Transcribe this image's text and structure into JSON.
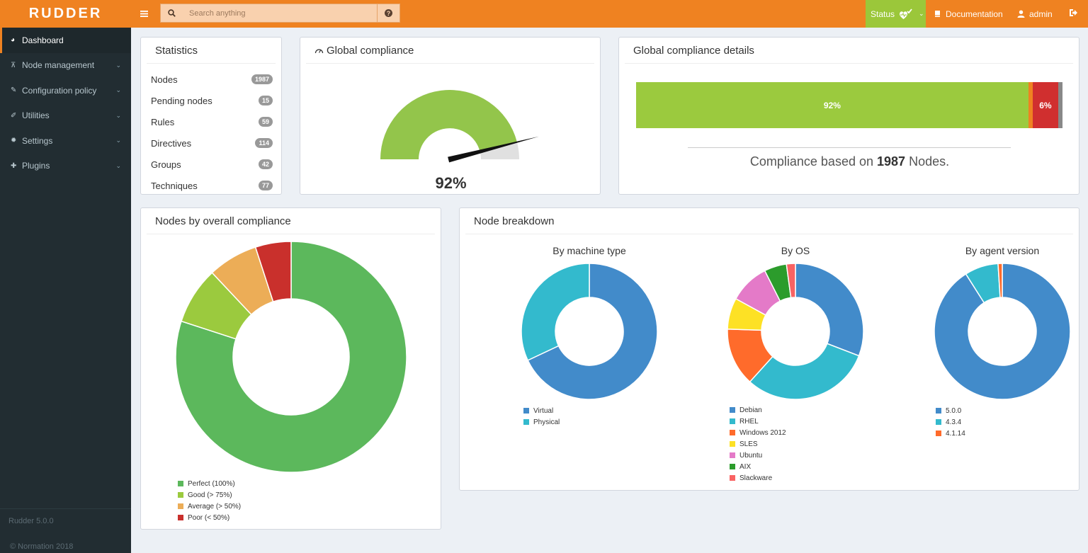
{
  "header": {
    "logo": "RUDDER",
    "search_placeholder": "Search anything",
    "status_label": "Status",
    "documentation_label": "Documentation",
    "user_label": "admin",
    "colors": {
      "brand": "#ef8221",
      "status": "#9bc73a"
    }
  },
  "sidebar": {
    "items": [
      {
        "label": "Dashboard",
        "icon": "dashboard-icon"
      },
      {
        "label": "Node management",
        "icon": "sitemap-icon"
      },
      {
        "label": "Configuration policy",
        "icon": "pencil-icon"
      },
      {
        "label": "Utilities",
        "icon": "wrench-icon"
      },
      {
        "label": "Settings",
        "icon": "gear-icon"
      },
      {
        "label": "Plugins",
        "icon": "puzzle-icon"
      }
    ],
    "version": "Rudder 5.0.0",
    "copyright": "© Normation 2018"
  },
  "statistics": {
    "title": "Statistics",
    "rows": [
      {
        "label": "Nodes",
        "count": "1987"
      },
      {
        "label": "Pending nodes",
        "count": "15"
      },
      {
        "label": "Rules",
        "count": "59"
      },
      {
        "label": "Directives",
        "count": "114"
      },
      {
        "label": "Groups",
        "count": "42"
      },
      {
        "label": "Techniques",
        "count": "77"
      }
    ]
  },
  "global_compliance": {
    "title": "Global compliance",
    "value_label": "92%",
    "value": 92
  },
  "compliance_details": {
    "title": "Global compliance details",
    "segments": [
      {
        "label": "92%",
        "value": 92,
        "color": "#9bca3e"
      },
      {
        "label": "",
        "value": 1,
        "color": "#ef8221"
      },
      {
        "label": "6%",
        "value": 6,
        "color": "#d02f2f"
      },
      {
        "label": "",
        "value": 1,
        "color": "#888888"
      }
    ],
    "summary_prefix": "Compliance based on",
    "summary_count": "1987",
    "summary_suffix": "Nodes."
  },
  "chart_data": [
    {
      "type": "pie",
      "title": "Nodes by overall compliance",
      "categories": [
        "Perfect (100%)",
        "Good (> 75%)",
        "Average (> 50%)",
        "Poor (< 50%)"
      ],
      "values": [
        80,
        8,
        7,
        5
      ],
      "colors": [
        "#5cb85c",
        "#9bca3e",
        "#ecad57",
        "#c9302c"
      ]
    },
    {
      "type": "pie",
      "title": "By machine type",
      "categories": [
        "Virtual",
        "Physical"
      ],
      "values": [
        68,
        32
      ],
      "colors": [
        "#428bca",
        "#33bacd"
      ]
    },
    {
      "type": "pie",
      "title": "By OS",
      "categories": [
        "Debian",
        "RHEL",
        "Windows 2012",
        "SLES",
        "Ubuntu",
        "AIX",
        "Slackware"
      ],
      "values": [
        29,
        29,
        13,
        7,
        9,
        5,
        2
      ],
      "colors": [
        "#428bca",
        "#33bacd",
        "#ff6b2b",
        "#fde125",
        "#e47ac8",
        "#2c9c2c",
        "#f96363"
      ]
    },
    {
      "type": "pie",
      "title": "By agent version",
      "categories": [
        "5.0.0",
        "4.3.4",
        "4.1.14"
      ],
      "values": [
        91,
        8,
        1
      ],
      "colors": [
        "#428bca",
        "#33bacd",
        "#ff6b2b"
      ]
    }
  ],
  "node_breakdown": {
    "title": "Node breakdown"
  }
}
